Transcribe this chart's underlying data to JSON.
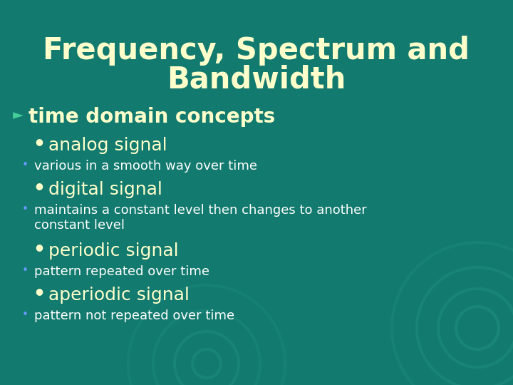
{
  "title_line1": "Frequency, Spectrum and",
  "title_line2": "Bandwidth",
  "bg_color": "#127a6e",
  "title_color": "#ffffcc",
  "arrow_color": "#44cc99",
  "bullet_l1_color": "#ffffcc",
  "subbullet_color": "#6699ff",
  "l1_text_color": "#ffffcc",
  "l2_text_color": "#ffffff",
  "main_bullet": "time domain concepts",
  "items": [
    {
      "bullet": "analog signal",
      "subitems": [
        "various in a smooth way over time"
      ]
    },
    {
      "bullet": "digital signal",
      "subitems": [
        "maintains a constant level then changes to another\nconstant level"
      ]
    },
    {
      "bullet": "periodic signal",
      "subitems": [
        "pattern repeated over time"
      ]
    },
    {
      "bullet": "aperiodic signal",
      "subitems": [
        "pattern not repeated over time"
      ]
    }
  ],
  "figwidth": 7.2,
  "figheight": 5.4,
  "dpi": 100
}
